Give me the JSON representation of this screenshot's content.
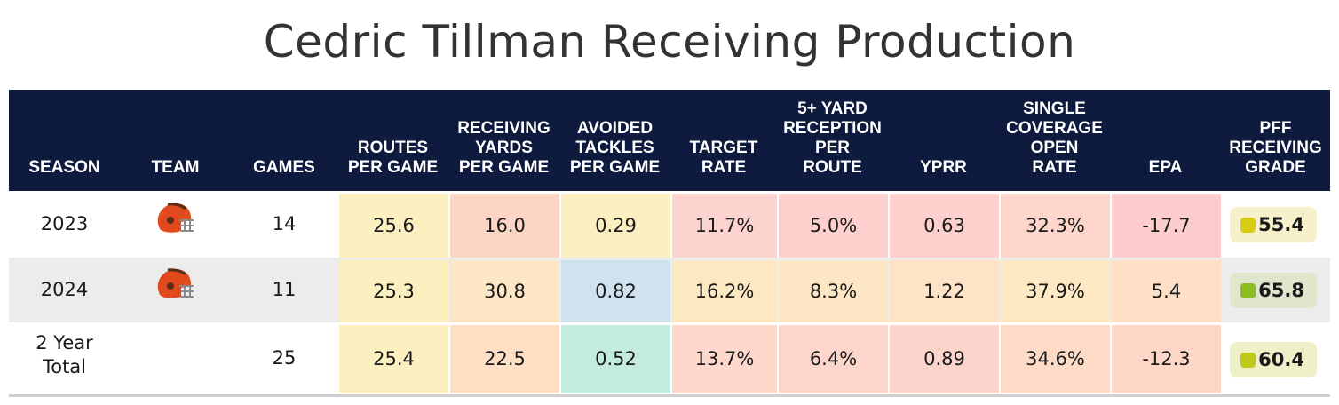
{
  "title": "Cedric Tillman Receiving Production",
  "header": {
    "season": "SEASON",
    "team": "TEAM",
    "games": "GAMES",
    "routes": "ROUTES\nPER GAME",
    "rec_yards": "RECEIVING\nYARDS\nPER GAME",
    "avoided": "AVOIDED\nTACKLES\nPER GAME",
    "target_rate": "TARGET\nRATE",
    "five_yard": "5+ YARD\nRECEPTION\nPER\nROUTE",
    "yprr": "YPRR",
    "single_cov": "SINGLE\nCOVERAGE\nOPEN\nRATE",
    "epa": "EPA",
    "grade": "PFF\nRECEIVING\nGRADE"
  },
  "rows": [
    {
      "season": "2023",
      "team_icon": "browns-helmet-icon",
      "games": "14",
      "routes": "25.6",
      "rec_yards": "16.0",
      "avoided": "0.29",
      "target_rate": "11.7%",
      "five_yard": "5.0%",
      "yprr": "0.63",
      "single_cov": "32.3%",
      "epa": "-17.7",
      "grade": "55.4"
    },
    {
      "season": "2024",
      "team_icon": "browns-helmet-icon",
      "games": "11",
      "routes": "25.3",
      "rec_yards": "30.8",
      "avoided": "0.82",
      "target_rate": "16.2%",
      "five_yard": "8.3%",
      "yprr": "1.22",
      "single_cov": "37.9%",
      "epa": "5.4",
      "grade": "65.8"
    },
    {
      "season": "2 Year\nTotal",
      "team_icon": "",
      "games": "25",
      "routes": "25.4",
      "rec_yards": "22.5",
      "avoided": "0.52",
      "target_rate": "13.7%",
      "five_yard": "6.4%",
      "yprr": "0.89",
      "single_cov": "34.6%",
      "epa": "-12.3",
      "grade": "60.4"
    }
  ],
  "colors": {
    "header_bg": "#0e1a3e",
    "cell_fills": {
      "routes": [
        "#fcefc0",
        "#fcefc0",
        "#fcefc0"
      ],
      "rec_yards": [
        "#fdd5c4",
        "#fde6c6",
        "#fde0c4"
      ],
      "avoided": [
        "#fbefc2",
        "#cfe2ee",
        "#c3ecdf"
      ],
      "target_rate": [
        "#fdd3cf",
        "#fde8c4",
        "#fdd8cb"
      ],
      "five_yard": [
        "#fdd0cd",
        "#fde6c4",
        "#fdd6cb"
      ],
      "yprr": [
        "#fdcfcd",
        "#fde4c6",
        "#fdd4cb"
      ],
      "single_cov": [
        "#fdd5ca",
        "#fde9c4",
        "#fddbc6"
      ],
      "epa": [
        "#fdcdcd",
        "#fde0c6",
        "#fdd6c8"
      ]
    },
    "grade_pills": [
      "#f7f1cb",
      "#dfe6cc",
      "#eff0c8"
    ],
    "grade_dots": [
      "#d9cc17",
      "#8cbc1f",
      "#bfc91c"
    ],
    "browns_orange": "#e04a1c",
    "browns_brown": "#5a2d17"
  },
  "chart_data": {
    "type": "table",
    "title": "Cedric Tillman Receiving Production",
    "columns": [
      "SEASON",
      "TEAM",
      "GAMES",
      "ROUTES PER GAME",
      "RECEIVING YARDS PER GAME",
      "AVOIDED TACKLES PER GAME",
      "TARGET RATE",
      "5+ YARD RECEPTION PER ROUTE",
      "YPRR",
      "SINGLE COVERAGE OPEN RATE",
      "EPA",
      "PFF RECEIVING GRADE"
    ],
    "rows": [
      [
        "2023",
        "browns-helmet",
        14,
        25.6,
        16.0,
        0.29,
        "11.7%",
        "5.0%",
        0.63,
        "32.3%",
        -17.7,
        55.4
      ],
      [
        "2024",
        "browns-helmet",
        11,
        25.3,
        30.8,
        0.82,
        "16.2%",
        "8.3%",
        1.22,
        "37.9%",
        5.4,
        65.8
      ],
      [
        "2 Year Total",
        "",
        25,
        25.4,
        22.5,
        0.52,
        "13.7%",
        "6.4%",
        0.89,
        "34.6%",
        -12.3,
        60.4
      ]
    ]
  }
}
